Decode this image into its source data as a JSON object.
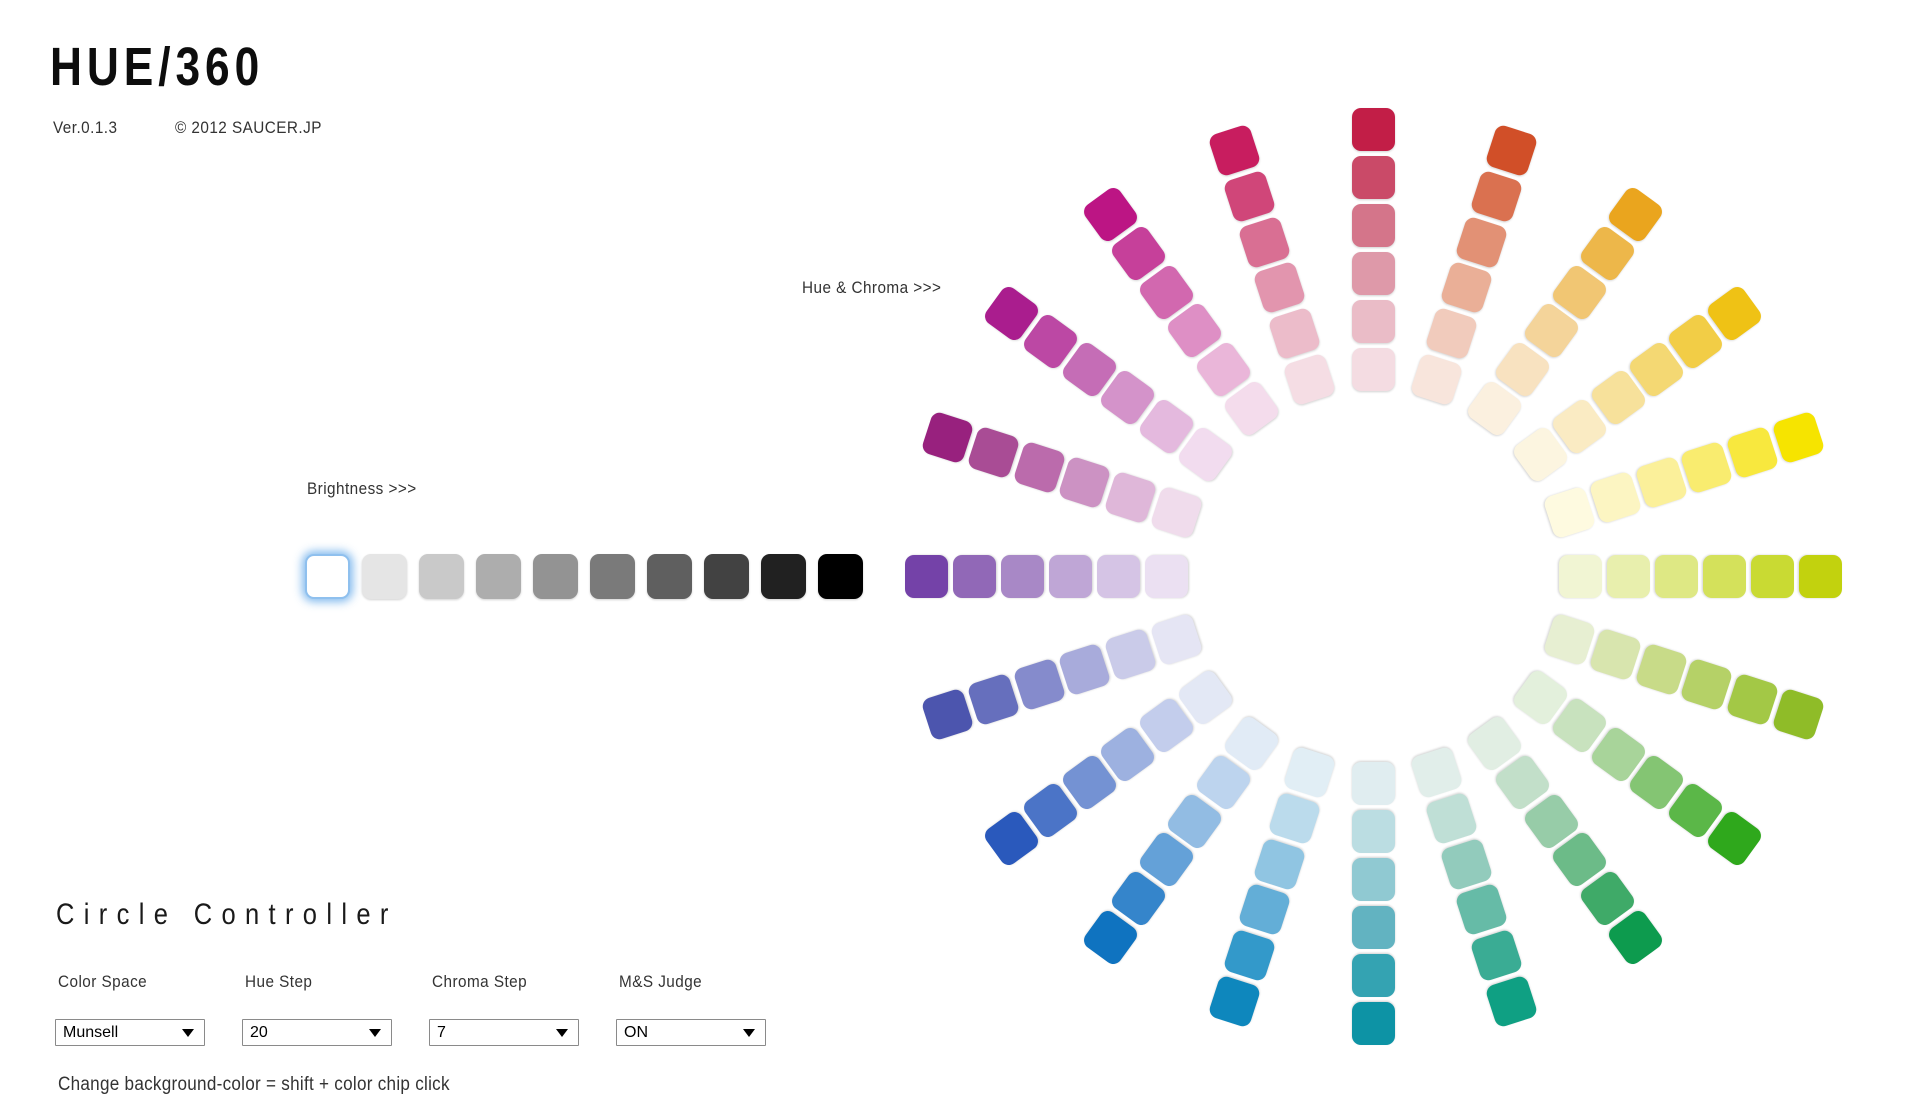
{
  "header": {
    "title": "HUE/360",
    "version": "Ver.0.1.3",
    "copyright": "© 2012 SAUCER.JP"
  },
  "labels": {
    "hue_chroma": "Hue & Chroma >>>",
    "brightness": "Brightness >>>"
  },
  "brightness": {
    "selected_index": 0,
    "colors": [
      "#FFFFFF",
      "#E5E5E5",
      "#C9C9C9",
      "#ADADAD",
      "#939393",
      "#7A7A7A",
      "#5F5F5F",
      "#424242",
      "#212121",
      "#000000"
    ]
  },
  "wheel": {
    "hue_count": 20,
    "chips_per_spoke": 6,
    "spokes": [
      {
        "angle": 0,
        "colors": [
          "#F4DCE2",
          "#EABCC7",
          "#DE99A9",
          "#D4758A",
          "#CA4A68",
          "#C21E47"
        ]
      },
      {
        "angle": 18,
        "colors": [
          "#F8E5DC",
          "#F1CBBC",
          "#EAAF97",
          "#E29175",
          "#DA7150",
          "#D14F28"
        ]
      },
      {
        "angle": 36,
        "colors": [
          "#FBF0DF",
          "#F8E2C0",
          "#F4D49A",
          "#F1C673",
          "#EDB74A",
          "#EAA51E"
        ]
      },
      {
        "angle": 54,
        "colors": [
          "#FCF5E0",
          "#FAEBC3",
          "#F7E19B",
          "#F4D873",
          "#F2CD46",
          "#EFC215"
        ]
      },
      {
        "angle": 72,
        "colors": [
          "#FEFAE0",
          "#FCF5C2",
          "#FBF09A",
          "#F9EC6F",
          "#F8E83E",
          "#F6E400"
        ]
      },
      {
        "angle": 90,
        "colors": [
          "#F1F5D3",
          "#E8EFAD",
          "#DEE884",
          "#D4E15B",
          "#C9DA33",
          "#C2D20E"
        ]
      },
      {
        "angle": 108,
        "colors": [
          "#E7EFD2",
          "#D8E5AE",
          "#C8DB88",
          "#B5D167",
          "#A3C846",
          "#8FBC28"
        ]
      },
      {
        "angle": 126,
        "colors": [
          "#E3F0DC",
          "#C8E2BE",
          "#A8D49A",
          "#84C573",
          "#5BB748",
          "#2FA81C"
        ]
      },
      {
        "angle": 144,
        "colors": [
          "#E1EEE3",
          "#C2DFC9",
          "#97CCA8",
          "#6CBB88",
          "#3FAA68",
          "#0D9B4E"
        ]
      },
      {
        "angle": 162,
        "colors": [
          "#E1EEEA",
          "#BFDFD6",
          "#92CBBC",
          "#66BBA7",
          "#3AAC94",
          "#0FA083"
        ]
      },
      {
        "angle": 180,
        "colors": [
          "#E0EDF0",
          "#BBDDE2",
          "#90C9D2",
          "#62B3C1",
          "#34A3B2",
          "#0D93A5"
        ]
      },
      {
        "angle": 198,
        "colors": [
          "#E1EEF5",
          "#BBDBEC",
          "#90C5E2",
          "#63AED7",
          "#3399CA",
          "#0E87BD"
        ]
      },
      {
        "angle": 216,
        "colors": [
          "#E1EBF6",
          "#BDD4EE",
          "#92BCE3",
          "#64A1D8",
          "#3585CB",
          "#0F73C0"
        ]
      },
      {
        "angle": 234,
        "colors": [
          "#E3E8F5",
          "#C3CDEC",
          "#9DB1E0",
          "#7492D3",
          "#4B74C7",
          "#2A59BC"
        ]
      },
      {
        "angle": 252,
        "colors": [
          "#E5E5F4",
          "#CACBE9",
          "#A8ABDB",
          "#858BCC",
          "#666FBD",
          "#4C55AE"
        ]
      },
      {
        "angle": 270,
        "colors": [
          "#EBE0F2",
          "#D5C4E5",
          "#BFA6D6",
          "#A888C6",
          "#9168B7",
          "#7442A8"
        ]
      },
      {
        "angle": 288,
        "colors": [
          "#F0DCEC",
          "#DFB7D9",
          "#CC92C3",
          "#BB6BAC",
          "#A94C95",
          "#98217E"
        ]
      },
      {
        "angle": 306,
        "colors": [
          "#F2DCEF",
          "#E4B9DE",
          "#D493CA",
          "#C56DB6",
          "#BC48A4",
          "#AA1D8E"
        ]
      },
      {
        "angle": 324,
        "colors": [
          "#F4DCEC",
          "#EAB6D9",
          "#DE8FC5",
          "#D268AF",
          "#C6409A",
          "#BC1584"
        ]
      },
      {
        "angle": 342,
        "colors": [
          "#F5DDE4",
          "#ECBCCA",
          "#E295AE",
          "#D96F93",
          "#D04679",
          "#C81D5F"
        ]
      }
    ]
  },
  "controller": {
    "heading": "Circle Controller",
    "fields": [
      {
        "id": "color-space",
        "label": "Color Space",
        "value": "Munsell"
      },
      {
        "id": "hue-step",
        "label": "Hue Step",
        "value": "20"
      },
      {
        "id": "chroma-step",
        "label": "Chroma Step",
        "value": "7"
      },
      {
        "id": "ms-judge",
        "label": "M&S Judge",
        "value": "ON"
      }
    ],
    "helper": "Change background-color = shift + color chip click"
  }
}
